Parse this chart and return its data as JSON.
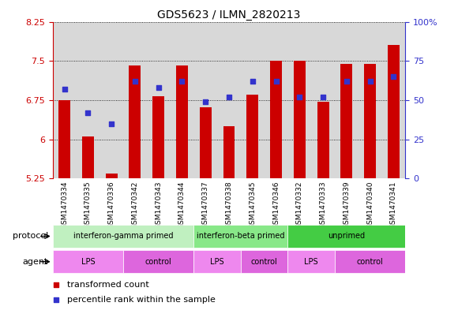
{
  "title": "GDS5623 / ILMN_2820213",
  "samples": [
    "GSM1470334",
    "GSM1470335",
    "GSM1470336",
    "GSM1470342",
    "GSM1470343",
    "GSM1470344",
    "GSM1470337",
    "GSM1470338",
    "GSM1470345",
    "GSM1470346",
    "GSM1470332",
    "GSM1470333",
    "GSM1470339",
    "GSM1470340",
    "GSM1470341"
  ],
  "transformed_count": [
    6.75,
    6.05,
    5.35,
    7.42,
    6.82,
    7.42,
    6.62,
    6.25,
    6.85,
    7.5,
    7.5,
    6.72,
    7.45,
    7.45,
    7.8
  ],
  "percentile_rank": [
    57,
    42,
    35,
    62,
    58,
    62,
    49,
    52,
    62,
    62,
    52,
    52,
    62,
    62,
    65
  ],
  "ymin": 5.25,
  "ymax": 8.25,
  "yticks": [
    5.25,
    6.0,
    6.75,
    7.5,
    8.25
  ],
  "ytick_labels": [
    "5.25",
    "6",
    "6.75",
    "7.5",
    "8.25"
  ],
  "right_yticks": [
    0,
    25,
    50,
    75,
    100
  ],
  "right_ytick_labels": [
    "0",
    "25",
    "50",
    "75",
    "100%"
  ],
  "bar_color": "#cc0000",
  "dot_color": "#3333cc",
  "col_bg_color": "#d8d8d8",
  "protocol_groups": [
    {
      "label": "interferon-gamma primed",
      "start": 0,
      "end": 5,
      "color": "#c0f0c0"
    },
    {
      "label": "interferon-beta primed",
      "start": 6,
      "end": 9,
      "color": "#88e888"
    },
    {
      "label": "unprimed",
      "start": 10,
      "end": 14,
      "color": "#44cc44"
    }
  ],
  "agent_blocks": [
    {
      "label": "LPS",
      "start": 0,
      "end": 2,
      "color": "#ee88ee"
    },
    {
      "label": "control",
      "start": 3,
      "end": 5,
      "color": "#dd66dd"
    },
    {
      "label": "LPS",
      "start": 6,
      "end": 7,
      "color": "#ee88ee"
    },
    {
      "label": "control",
      "start": 8,
      "end": 9,
      "color": "#dd66dd"
    },
    {
      "label": "LPS",
      "start": 10,
      "end": 11,
      "color": "#ee88ee"
    },
    {
      "label": "control",
      "start": 12,
      "end": 14,
      "color": "#dd66dd"
    }
  ],
  "protocol_label": "protocol",
  "agent_label": "agent",
  "legend_items": [
    {
      "label": "transformed count",
      "color": "#cc0000",
      "marker": "s"
    },
    {
      "label": "percentile rank within the sample",
      "color": "#3333cc",
      "marker": "s"
    }
  ]
}
